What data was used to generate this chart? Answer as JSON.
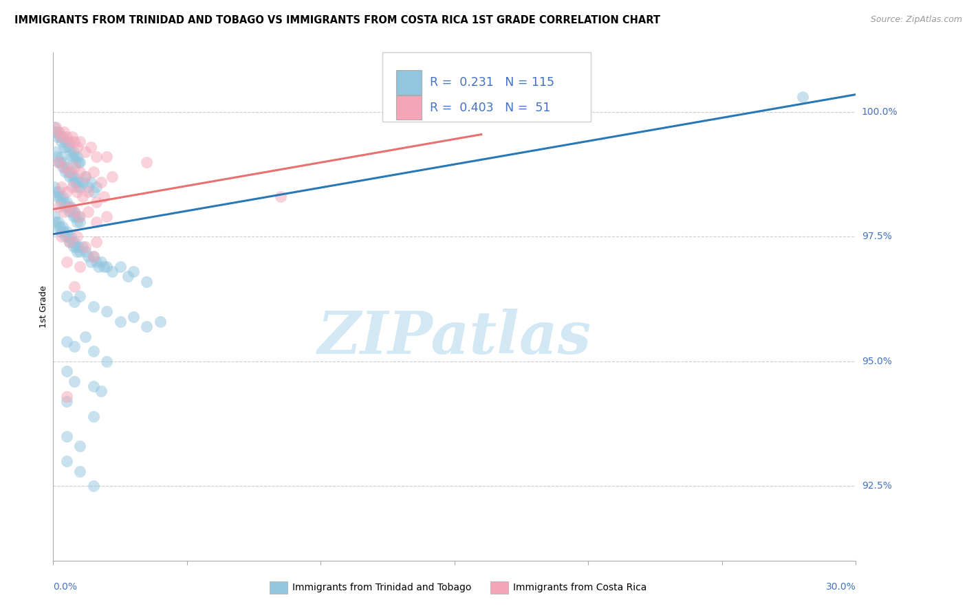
{
  "title": "IMMIGRANTS FROM TRINIDAD AND TOBAGO VS IMMIGRANTS FROM COSTA RICA 1ST GRADE CORRELATION CHART",
  "source": "Source: ZipAtlas.com",
  "ylabel": "1st Grade",
  "xmin": 0.0,
  "xmax": 30.0,
  "ymin": 91.0,
  "ymax": 101.2,
  "yticks": [
    92.5,
    95.0,
    97.5,
    100.0
  ],
  "ytick_labels": [
    "92.5%",
    "95.0%",
    "97.5%",
    "100.0%"
  ],
  "blue_color": "#92c5de",
  "pink_color": "#f4a6b8",
  "blue_line_color": "#2878b5",
  "pink_line_color": "#e87070",
  "blue_r": "0.231",
  "blue_n": "115",
  "pink_r": "0.403",
  "pink_n": "51",
  "watermark_text": "ZIPatlas",
  "blue_trend_x": [
    0.0,
    30.0
  ],
  "blue_trend_y": [
    97.55,
    100.35
  ],
  "pink_trend_x": [
    0.0,
    16.0
  ],
  "pink_trend_y": [
    98.05,
    99.55
  ],
  "blue_scatter": [
    [
      0.05,
      99.7
    ],
    [
      0.1,
      99.6
    ],
    [
      0.15,
      99.5
    ],
    [
      0.2,
      99.6
    ],
    [
      0.25,
      99.5
    ],
    [
      0.3,
      99.4
    ],
    [
      0.35,
      99.5
    ],
    [
      0.4,
      99.3
    ],
    [
      0.45,
      99.4
    ],
    [
      0.5,
      99.3
    ],
    [
      0.55,
      99.4
    ],
    [
      0.6,
      99.3
    ],
    [
      0.65,
      99.2
    ],
    [
      0.7,
      99.1
    ],
    [
      0.75,
      99.2
    ],
    [
      0.8,
      99.1
    ],
    [
      0.85,
      99.0
    ],
    [
      0.9,
      99.1
    ],
    [
      0.95,
      99.0
    ],
    [
      1.0,
      99.0
    ],
    [
      0.1,
      99.2
    ],
    [
      0.15,
      99.1
    ],
    [
      0.2,
      99.0
    ],
    [
      0.25,
      99.0
    ],
    [
      0.3,
      99.1
    ],
    [
      0.35,
      98.9
    ],
    [
      0.4,
      99.0
    ],
    [
      0.45,
      98.8
    ],
    [
      0.5,
      98.9
    ],
    [
      0.55,
      98.8
    ],
    [
      0.6,
      98.7
    ],
    [
      0.65,
      98.8
    ],
    [
      0.7,
      98.7
    ],
    [
      0.75,
      98.6
    ],
    [
      0.8,
      98.7
    ],
    [
      0.85,
      98.6
    ],
    [
      0.9,
      98.5
    ],
    [
      0.95,
      98.6
    ],
    [
      1.0,
      98.5
    ],
    [
      1.1,
      98.6
    ],
    [
      1.2,
      98.7
    ],
    [
      1.3,
      98.5
    ],
    [
      1.4,
      98.6
    ],
    [
      1.5,
      98.4
    ],
    [
      1.6,
      98.5
    ],
    [
      0.05,
      98.5
    ],
    [
      0.1,
      98.4
    ],
    [
      0.15,
      98.3
    ],
    [
      0.2,
      98.4
    ],
    [
      0.25,
      98.3
    ],
    [
      0.3,
      98.2
    ],
    [
      0.35,
      98.3
    ],
    [
      0.4,
      98.2
    ],
    [
      0.45,
      98.1
    ],
    [
      0.5,
      98.2
    ],
    [
      0.55,
      98.1
    ],
    [
      0.6,
      98.0
    ],
    [
      0.65,
      98.1
    ],
    [
      0.7,
      98.0
    ],
    [
      0.75,
      97.9
    ],
    [
      0.8,
      98.0
    ],
    [
      0.85,
      97.9
    ],
    [
      0.9,
      97.8
    ],
    [
      0.95,
      97.9
    ],
    [
      1.0,
      97.8
    ],
    [
      0.05,
      97.9
    ],
    [
      0.1,
      97.8
    ],
    [
      0.15,
      97.7
    ],
    [
      0.2,
      97.8
    ],
    [
      0.25,
      97.7
    ],
    [
      0.3,
      97.6
    ],
    [
      0.35,
      97.7
    ],
    [
      0.4,
      97.6
    ],
    [
      0.45,
      97.5
    ],
    [
      0.5,
      97.6
    ],
    [
      0.55,
      97.5
    ],
    [
      0.6,
      97.4
    ],
    [
      0.65,
      97.5
    ],
    [
      0.7,
      97.4
    ],
    [
      0.75,
      97.3
    ],
    [
      0.8,
      97.4
    ],
    [
      0.85,
      97.3
    ],
    [
      0.9,
      97.2
    ],
    [
      0.95,
      97.3
    ],
    [
      1.0,
      97.2
    ],
    [
      1.1,
      97.3
    ],
    [
      1.2,
      97.2
    ],
    [
      1.3,
      97.1
    ],
    [
      1.4,
      97.0
    ],
    [
      1.5,
      97.1
    ],
    [
      1.6,
      97.0
    ],
    [
      1.7,
      96.9
    ],
    [
      1.8,
      97.0
    ],
    [
      1.9,
      96.9
    ],
    [
      2.0,
      96.9
    ],
    [
      2.2,
      96.8
    ],
    [
      2.5,
      96.9
    ],
    [
      2.8,
      96.7
    ],
    [
      3.0,
      96.8
    ],
    [
      3.5,
      96.6
    ],
    [
      0.5,
      96.3
    ],
    [
      0.8,
      96.2
    ],
    [
      1.0,
      96.3
    ],
    [
      1.5,
      96.1
    ],
    [
      2.0,
      96.0
    ],
    [
      2.5,
      95.8
    ],
    [
      3.0,
      95.9
    ],
    [
      3.5,
      95.7
    ],
    [
      4.0,
      95.8
    ],
    [
      0.5,
      95.4
    ],
    [
      0.8,
      95.3
    ],
    [
      1.2,
      95.5
    ],
    [
      1.5,
      95.2
    ],
    [
      2.0,
      95.0
    ],
    [
      0.5,
      94.8
    ],
    [
      0.8,
      94.6
    ],
    [
      1.5,
      94.5
    ],
    [
      1.8,
      94.4
    ],
    [
      0.5,
      94.2
    ],
    [
      1.5,
      93.9
    ],
    [
      0.5,
      93.5
    ],
    [
      1.0,
      93.3
    ],
    [
      0.5,
      93.0
    ],
    [
      1.0,
      92.8
    ],
    [
      1.5,
      92.5
    ],
    [
      28.0,
      100.3
    ]
  ],
  "pink_scatter": [
    [
      0.1,
      99.7
    ],
    [
      0.2,
      99.6
    ],
    [
      0.3,
      99.5
    ],
    [
      0.4,
      99.6
    ],
    [
      0.5,
      99.5
    ],
    [
      0.6,
      99.4
    ],
    [
      0.7,
      99.5
    ],
    [
      0.8,
      99.4
    ],
    [
      0.9,
      99.3
    ],
    [
      1.0,
      99.4
    ],
    [
      1.2,
      99.2
    ],
    [
      1.4,
      99.3
    ],
    [
      1.6,
      99.1
    ],
    [
      2.0,
      99.1
    ],
    [
      3.5,
      99.0
    ],
    [
      0.2,
      99.0
    ],
    [
      0.4,
      98.9
    ],
    [
      0.6,
      98.8
    ],
    [
      0.8,
      98.9
    ],
    [
      1.0,
      98.8
    ],
    [
      1.2,
      98.7
    ],
    [
      1.5,
      98.8
    ],
    [
      1.8,
      98.6
    ],
    [
      2.2,
      98.7
    ],
    [
      0.3,
      98.5
    ],
    [
      0.5,
      98.4
    ],
    [
      0.7,
      98.5
    ],
    [
      0.9,
      98.4
    ],
    [
      1.1,
      98.3
    ],
    [
      1.3,
      98.4
    ],
    [
      1.6,
      98.2
    ],
    [
      1.9,
      98.3
    ],
    [
      0.2,
      98.1
    ],
    [
      0.4,
      98.0
    ],
    [
      0.6,
      98.1
    ],
    [
      0.8,
      98.0
    ],
    [
      1.0,
      97.9
    ],
    [
      1.3,
      98.0
    ],
    [
      1.6,
      97.8
    ],
    [
      2.0,
      97.9
    ],
    [
      0.3,
      97.5
    ],
    [
      0.6,
      97.4
    ],
    [
      0.9,
      97.5
    ],
    [
      1.2,
      97.3
    ],
    [
      1.6,
      97.4
    ],
    [
      0.5,
      97.0
    ],
    [
      1.0,
      96.9
    ],
    [
      1.5,
      97.1
    ],
    [
      0.5,
      94.3
    ],
    [
      8.5,
      98.3
    ],
    [
      0.8,
      96.5
    ]
  ],
  "legend_blue_label": "Immigrants from Trinidad and Tobago",
  "legend_pink_label": "Immigrants from Costa Rica"
}
